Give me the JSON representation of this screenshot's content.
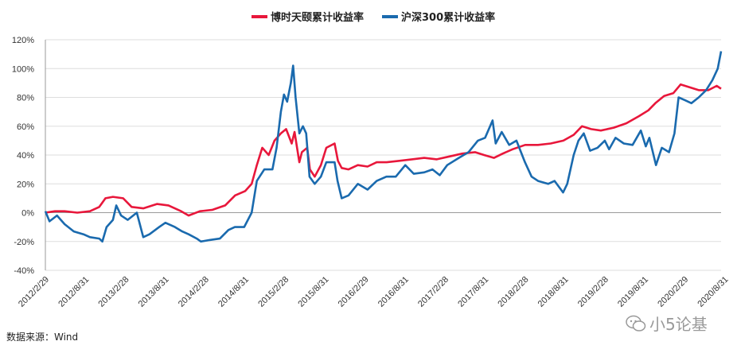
{
  "chart_data": {
    "type": "line",
    "ylim": [
      -40,
      120
    ],
    "y_ticks": [
      -40,
      -20,
      0,
      20,
      40,
      60,
      80,
      100,
      120
    ],
    "y_tick_labels": [
      "-40%",
      "-20%",
      "0%",
      "20%",
      "40%",
      "60%",
      "80%",
      "100%",
      "120%"
    ],
    "x_tick_labels": [
      "2012/2/29",
      "2012/8/31",
      "2013/2/28",
      "2013/8/31",
      "2014/2/28",
      "2014/8/31",
      "2015/2/28",
      "2015/8/31",
      "2016/2/29",
      "2016/8/31",
      "2017/2/28",
      "2017/8/31",
      "2018/2/28",
      "2018/8/31",
      "2019/2/28",
      "2019/8/31",
      "2020/2/29",
      "2020/8/31"
    ],
    "x_range": [
      "2012-02-29",
      "2021-01-31"
    ],
    "grid": "horizontal",
    "legend_position": "top-center",
    "series": [
      {
        "name": "博时天颐累计收益率",
        "color": "#e8173b",
        "points": [
          [
            "2012-02-29",
            0
          ],
          [
            "2012-04-15",
            1
          ],
          [
            "2012-06-01",
            1
          ],
          [
            "2012-08-01",
            0
          ],
          [
            "2012-10-01",
            1
          ],
          [
            "2012-11-15",
            4
          ],
          [
            "2012-12-15",
            10
          ],
          [
            "2013-01-20",
            11
          ],
          [
            "2013-03-10",
            10
          ],
          [
            "2013-04-20",
            4
          ],
          [
            "2013-06-15",
            3
          ],
          [
            "2013-08-20",
            6
          ],
          [
            "2013-10-15",
            5
          ],
          [
            "2013-12-15",
            1
          ],
          [
            "2014-01-20",
            -2
          ],
          [
            "2014-03-15",
            1
          ],
          [
            "2014-05-15",
            2
          ],
          [
            "2014-07-15",
            5
          ],
          [
            "2014-09-01",
            12
          ],
          [
            "2014-10-20",
            15
          ],
          [
            "2014-11-20",
            20
          ],
          [
            "2014-12-15",
            33
          ],
          [
            "2015-01-10",
            45
          ],
          [
            "2015-02-10",
            40
          ],
          [
            "2015-03-10",
            50
          ],
          [
            "2015-04-10",
            55
          ],
          [
            "2015-05-05",
            58
          ],
          [
            "2015-06-01",
            48
          ],
          [
            "2015-06-15",
            56
          ],
          [
            "2015-07-08",
            35
          ],
          [
            "2015-07-20",
            42
          ],
          [
            "2015-08-15",
            45
          ],
          [
            "2015-08-28",
            30
          ],
          [
            "2015-09-20",
            25
          ],
          [
            "2015-10-20",
            33
          ],
          [
            "2015-11-15",
            45
          ],
          [
            "2015-12-25",
            48
          ],
          [
            "2016-01-10",
            36
          ],
          [
            "2016-01-28",
            31
          ],
          [
            "2016-03-01",
            30
          ],
          [
            "2016-04-15",
            33
          ],
          [
            "2016-06-01",
            32
          ],
          [
            "2016-07-15",
            35
          ],
          [
            "2016-09-01",
            35
          ],
          [
            "2016-11-01",
            36
          ],
          [
            "2017-01-01",
            37
          ],
          [
            "2017-03-01",
            38
          ],
          [
            "2017-05-01",
            37
          ],
          [
            "2017-07-01",
            39
          ],
          [
            "2017-09-01",
            41
          ],
          [
            "2017-11-01",
            42
          ],
          [
            "2017-12-15",
            40
          ],
          [
            "2018-02-01",
            38
          ],
          [
            "2018-03-15",
            41
          ],
          [
            "2018-05-01",
            44
          ],
          [
            "2018-07-01",
            47
          ],
          [
            "2018-09-01",
            47
          ],
          [
            "2018-11-01",
            48
          ],
          [
            "2019-01-01",
            50
          ],
          [
            "2019-02-20",
            54
          ],
          [
            "2019-04-01",
            60
          ],
          [
            "2019-05-15",
            58
          ],
          [
            "2019-07-01",
            57
          ],
          [
            "2019-09-01",
            59
          ],
          [
            "2019-11-01",
            62
          ],
          [
            "2020-01-01",
            67
          ],
          [
            "2020-02-15",
            71
          ],
          [
            "2020-03-20",
            76
          ],
          [
            "2020-05-01",
            81
          ],
          [
            "2020-06-15",
            83
          ],
          [
            "2020-07-20",
            89
          ],
          [
            "2020-09-01",
            87
          ],
          [
            "2020-10-15",
            85
          ],
          [
            "2020-12-01",
            85
          ],
          [
            "2021-01-10",
            88
          ],
          [
            "2021-01-31",
            86
          ]
        ]
      },
      {
        "name": "沪深300累计收益率",
        "color": "#1a6aae",
        "points": [
          [
            "2012-02-29",
            1
          ],
          [
            "2012-03-20",
            -6
          ],
          [
            "2012-04-25",
            -2
          ],
          [
            "2012-06-01",
            -8
          ],
          [
            "2012-07-15",
            -13
          ],
          [
            "2012-08-31",
            -15
          ],
          [
            "2012-10-01",
            -17
          ],
          [
            "2012-11-15",
            -18
          ],
          [
            "2012-11-30",
            -20
          ],
          [
            "2012-12-20",
            -10
          ],
          [
            "2013-01-20",
            -5
          ],
          [
            "2013-02-05",
            5
          ],
          [
            "2013-02-28",
            -2
          ],
          [
            "2013-04-01",
            -5
          ],
          [
            "2013-05-15",
            0
          ],
          [
            "2013-06-15",
            -17
          ],
          [
            "2013-07-15",
            -15
          ],
          [
            "2013-08-31",
            -10
          ],
          [
            "2013-09-30",
            -7
          ],
          [
            "2013-11-15",
            -10
          ],
          [
            "2013-12-20",
            -13
          ],
          [
            "2014-01-20",
            -15
          ],
          [
            "2014-02-28",
            -18
          ],
          [
            "2014-03-20",
            -20
          ],
          [
            "2014-05-01",
            -19
          ],
          [
            "2014-06-20",
            -18
          ],
          [
            "2014-07-31",
            -12
          ],
          [
            "2014-08-31",
            -10
          ],
          [
            "2014-10-15",
            -10
          ],
          [
            "2014-11-20",
            0
          ],
          [
            "2014-12-15",
            22
          ],
          [
            "2015-01-20",
            30
          ],
          [
            "2015-02-28",
            30
          ],
          [
            "2015-03-20",
            45
          ],
          [
            "2015-04-10",
            70
          ],
          [
            "2015-04-25",
            82
          ],
          [
            "2015-05-10",
            77
          ],
          [
            "2015-05-28",
            90
          ],
          [
            "2015-06-08",
            102
          ],
          [
            "2015-06-20",
            80
          ],
          [
            "2015-07-08",
            55
          ],
          [
            "2015-07-25",
            60
          ],
          [
            "2015-08-10",
            55
          ],
          [
            "2015-08-26",
            25
          ],
          [
            "2015-09-20",
            20
          ],
          [
            "2015-10-20",
            25
          ],
          [
            "2015-11-15",
            35
          ],
          [
            "2015-12-25",
            35
          ],
          [
            "2016-01-08",
            22
          ],
          [
            "2016-01-28",
            10
          ],
          [
            "2016-03-01",
            12
          ],
          [
            "2016-04-15",
            20
          ],
          [
            "2016-06-01",
            16
          ],
          [
            "2016-07-15",
            22
          ],
          [
            "2016-08-31",
            25
          ],
          [
            "2016-10-15",
            25
          ],
          [
            "2016-11-30",
            33
          ],
          [
            "2017-01-10",
            27
          ],
          [
            "2017-03-01",
            28
          ],
          [
            "2017-04-10",
            30
          ],
          [
            "2017-05-15",
            26
          ],
          [
            "2017-06-20",
            33
          ],
          [
            "2017-08-15",
            38
          ],
          [
            "2017-10-01",
            42
          ],
          [
            "2017-11-15",
            50
          ],
          [
            "2017-12-20",
            52
          ],
          [
            "2018-01-25",
            64
          ],
          [
            "2018-02-09",
            48
          ],
          [
            "2018-03-10",
            56
          ],
          [
            "2018-04-15",
            47
          ],
          [
            "2018-05-20",
            50
          ],
          [
            "2018-06-30",
            35
          ],
          [
            "2018-08-01",
            25
          ],
          [
            "2018-09-01",
            22
          ],
          [
            "2018-10-20",
            20
          ],
          [
            "2018-11-20",
            22
          ],
          [
            "2018-12-31",
            14
          ],
          [
            "2019-01-20",
            20
          ],
          [
            "2019-02-20",
            40
          ],
          [
            "2019-03-15",
            50
          ],
          [
            "2019-04-10",
            55
          ],
          [
            "2019-05-10",
            43
          ],
          [
            "2019-06-15",
            45
          ],
          [
            "2019-07-20",
            50
          ],
          [
            "2019-08-10",
            44
          ],
          [
            "2019-09-10",
            52
          ],
          [
            "2019-10-20",
            48
          ],
          [
            "2019-12-01",
            47
          ],
          [
            "2020-01-10",
            57
          ],
          [
            "2020-02-03",
            46
          ],
          [
            "2020-02-20",
            52
          ],
          [
            "2020-03-23",
            33
          ],
          [
            "2020-04-20",
            45
          ],
          [
            "2020-05-25",
            42
          ],
          [
            "2020-06-20",
            55
          ],
          [
            "2020-07-10",
            80
          ],
          [
            "2020-08-10",
            78
          ],
          [
            "2020-09-10",
            76
          ],
          [
            "2020-10-15",
            80
          ],
          [
            "2020-11-20",
            85
          ],
          [
            "2020-12-20",
            92
          ],
          [
            "2021-01-15",
            100
          ],
          [
            "2021-01-31",
            112
          ]
        ]
      }
    ]
  },
  "source_label": "数据来源：Wind",
  "watermark_text": "小5论基",
  "watermark_icon": "wechat-icon"
}
